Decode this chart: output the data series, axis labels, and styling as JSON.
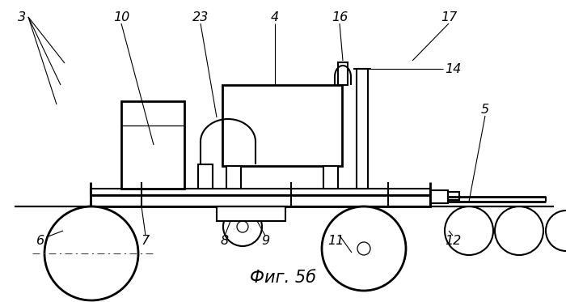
{
  "title": "Фиг. 5б",
  "title_fontsize": 15,
  "line_color": "#000000",
  "bg_color": "#ffffff",
  "lw": 1.5,
  "lw_thin": 0.9,
  "lw_thick": 2.0
}
